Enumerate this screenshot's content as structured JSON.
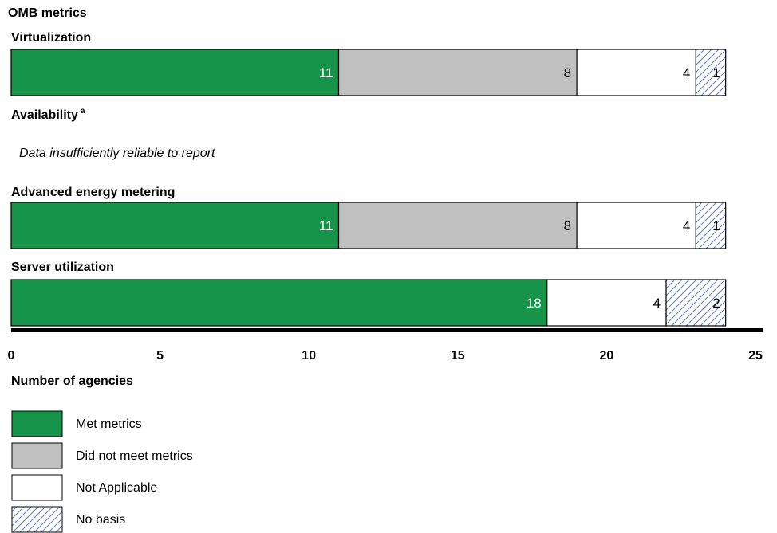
{
  "colors": {
    "met": "#16954a",
    "not_met": "#c0c0c0",
    "not_applicable": "#ffffff",
    "no_basis_hatch": "#5b7fbf"
  },
  "chart_data": {
    "type": "bar",
    "orientation": "horizontal",
    "stacked": true,
    "title": "OMB metrics",
    "xlabel": "Number of agencies",
    "xlim": [
      0,
      25
    ],
    "xticks": [
      "0",
      "5",
      "10",
      "15",
      "20",
      "25"
    ],
    "legend_position": "bottom-left",
    "series_names": [
      "Met metrics",
      "Did not meet metrics",
      "Not Applicable",
      "No basis"
    ],
    "rows": [
      {
        "label": "Virtualization",
        "segments": [
          {
            "series": "Met metrics",
            "value": 11,
            "label": "11"
          },
          {
            "series": "Did not meet metrics",
            "value": 8,
            "label": "8"
          },
          {
            "series": "Not Applicable",
            "value": 4,
            "label": "4"
          },
          {
            "series": "No basis",
            "value": 1,
            "label": "1"
          }
        ]
      },
      {
        "label": "Availability",
        "superscript": "a",
        "note": "Data insufficiently reliable to report",
        "segments": []
      },
      {
        "label": "Advanced energy metering",
        "segments": [
          {
            "series": "Met metrics",
            "value": 11,
            "label": "11"
          },
          {
            "series": "Did not meet metrics",
            "value": 8,
            "label": "8"
          },
          {
            "series": "Not Applicable",
            "value": 4,
            "label": "4"
          },
          {
            "series": "No basis",
            "value": 1,
            "label": "1"
          }
        ]
      },
      {
        "label": "Server utilization",
        "segments": [
          {
            "series": "Met metrics",
            "value": 18,
            "label": "18"
          },
          {
            "series": "Not Applicable",
            "value": 4,
            "label": "4"
          },
          {
            "series": "No basis",
            "value": 2,
            "label": "2"
          }
        ]
      }
    ]
  }
}
